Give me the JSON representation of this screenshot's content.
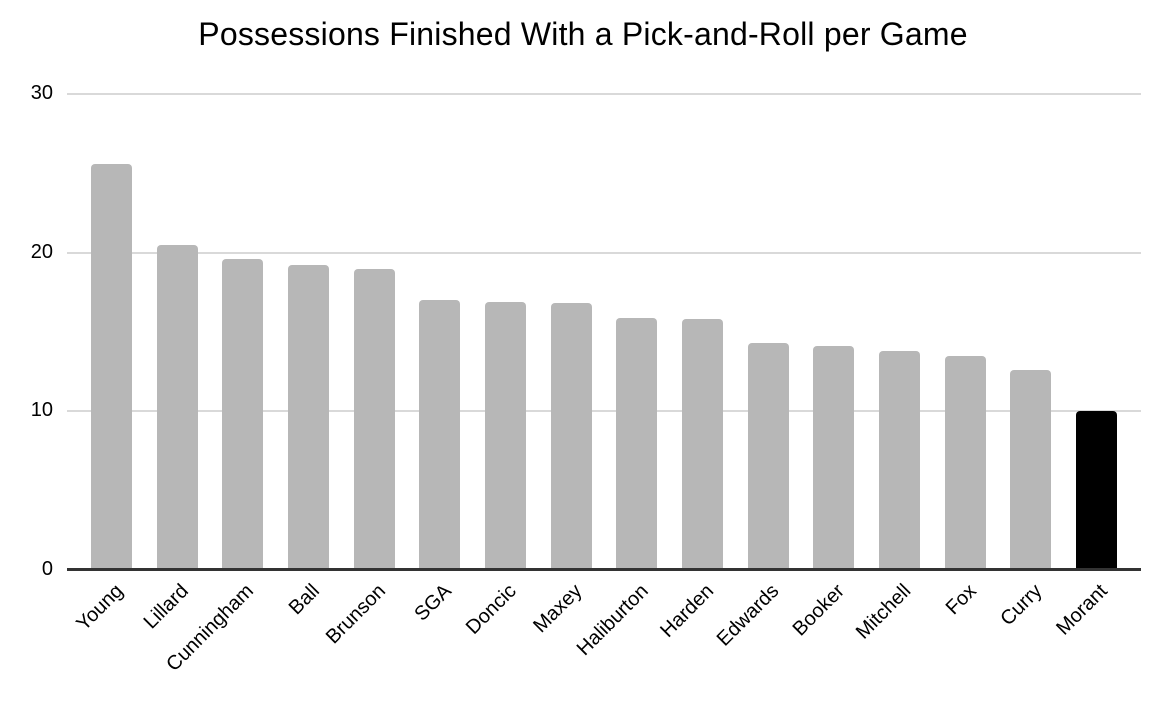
{
  "chart_data": {
    "type": "bar",
    "title": "Possessions Finished With a Pick-and-Roll per Game",
    "categories": [
      "Young",
      "Lillard",
      "Cunningham",
      "Ball",
      "Brunson",
      "SGA",
      "Doncic",
      "Maxey",
      "Haliburton",
      "Harden",
      "Edwards",
      "Booker",
      "Mitchell",
      "Fox",
      "Curry",
      "Morant"
    ],
    "values": [
      25.6,
      20.5,
      19.6,
      19.2,
      19.0,
      17.0,
      16.9,
      16.8,
      15.9,
      15.8,
      14.3,
      14.1,
      13.8,
      13.5,
      12.6,
      10.0
    ],
    "xlabel": "",
    "ylabel": "",
    "ylim": [
      0,
      30
    ],
    "yticks": [
      0,
      10,
      20,
      30
    ],
    "grid": true,
    "legend": false,
    "bar_style": {
      "default_color": "#b7b7b7",
      "highlight_color": "#000000",
      "highlight_category": "Morant"
    },
    "colors": {
      "background": "#ffffff",
      "gridline": "#d9d9d9",
      "axis_line": "#333333",
      "text": "#000000"
    }
  }
}
